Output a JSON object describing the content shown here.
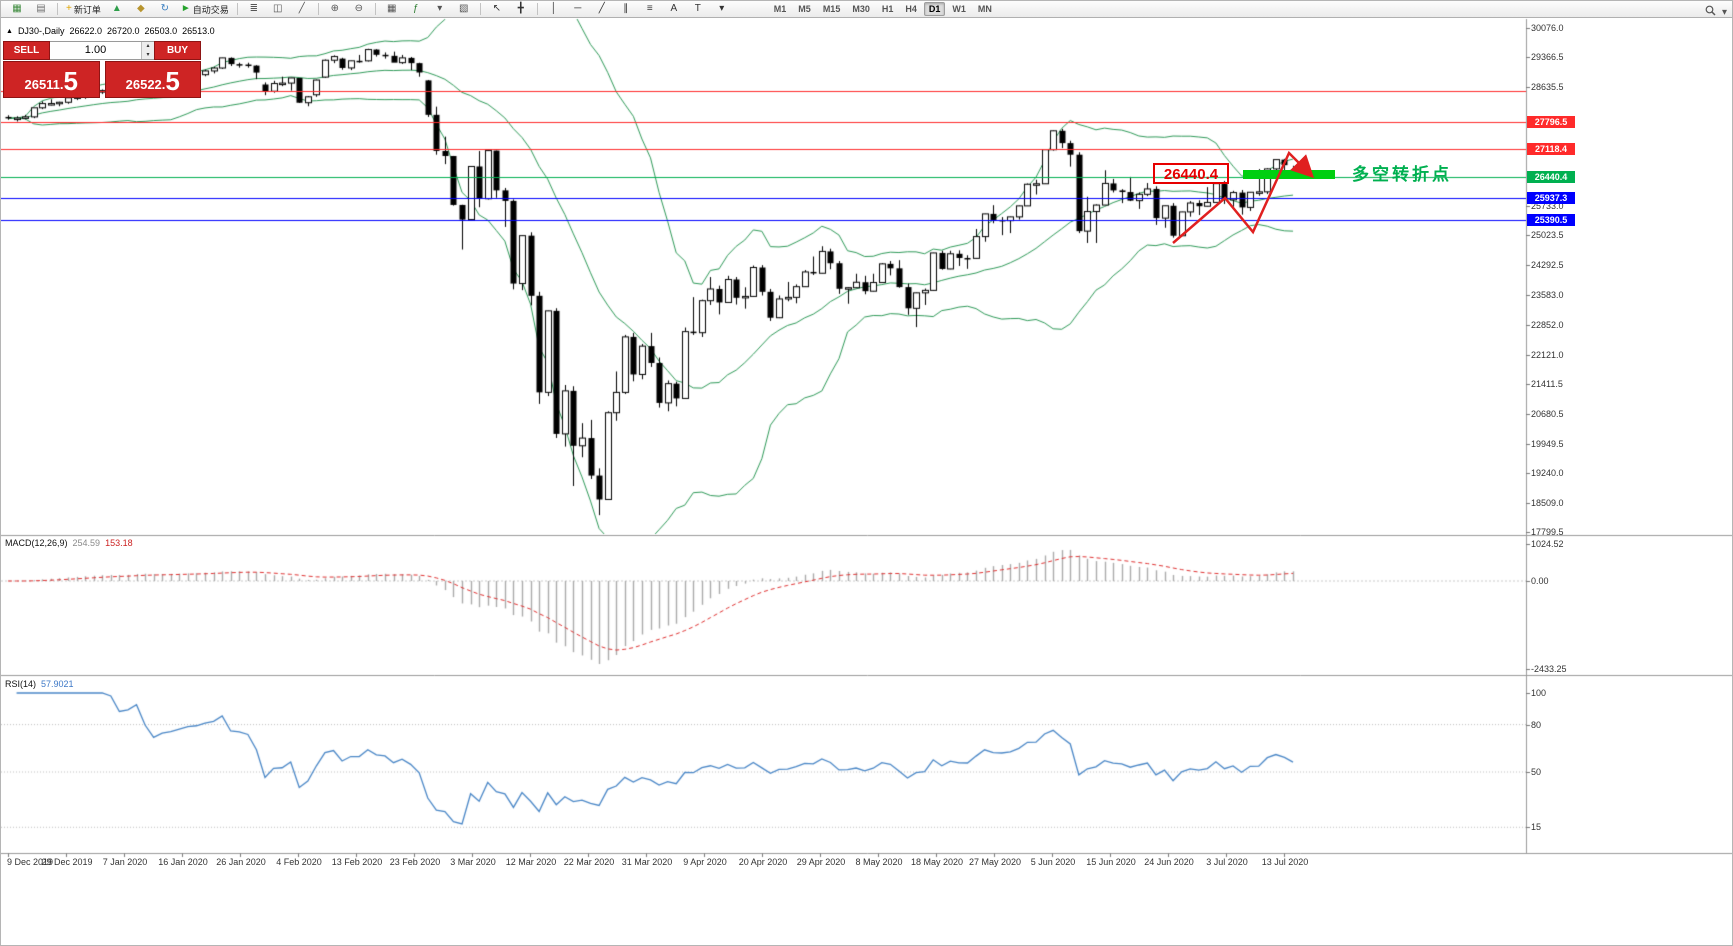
{
  "toolbar": {
    "groups": [
      {
        "items": [
          {
            "name": "new-chart-button",
            "glyph": "▦",
            "color": "#3c8a3c"
          },
          {
            "name": "chart-profiles-button",
            "glyph": "▤",
            "color": "#707070"
          }
        ]
      },
      {
        "items": [
          {
            "name": "new-order-button",
            "glyph": "+",
            "color": "#e0a500",
            "label": "新订单"
          },
          {
            "name": "chart-up-icon",
            "glyph": "▲",
            "color": "#2e9e4a"
          },
          {
            "name": "chart-shift-icon",
            "glyph": "◆",
            "color": "#b8952f"
          },
          {
            "name": "refresh-icon",
            "glyph": "↻",
            "color": "#3a7fc1"
          },
          {
            "name": "auto-trading-button",
            "glyph": "►",
            "color": "#27a32d",
            "label": "自动交易"
          }
        ]
      },
      {
        "items": [
          {
            "name": "bar-chart-type-button",
            "glyph": "≣",
            "color": "#555555"
          },
          {
            "name": "candlestick-chart-type-button",
            "glyph": "◫",
            "color": "#555555"
          },
          {
            "name": "line-chart-type-button",
            "glyph": "╱",
            "color": "#555555"
          }
        ]
      },
      {
        "items": [
          {
            "name": "zoom-in-button",
            "glyph": "⊕",
            "color": "#555555"
          },
          {
            "name": "zoom-out-button",
            "glyph": "⊖",
            "color": "#555555"
          }
        ]
      },
      {
        "items": [
          {
            "name": "tile-windows-button",
            "glyph": "▦",
            "color": "#555555"
          },
          {
            "name": "indicators-button",
            "glyph": "ƒ",
            "color": "#2e7d32"
          },
          {
            "name": "periods-dropdown",
            "glyph": "▾",
            "color": "#555555"
          },
          {
            "name": "templates-button",
            "glyph": "▧",
            "color": "#555555"
          }
        ]
      },
      {
        "items": [
          {
            "name": "cursor-button",
            "glyph": "↖",
            "color": "#333333"
          },
          {
            "name": "crosshair-button",
            "glyph": "╋",
            "color": "#333333"
          }
        ]
      },
      {
        "items": [
          {
            "name": "vertical-line-button",
            "glyph": "│",
            "color": "#333333"
          },
          {
            "name": "horizontal-line-button",
            "glyph": "─",
            "color": "#333333"
          },
          {
            "name": "trendline-button",
            "glyph": "╱",
            "color": "#333333"
          },
          {
            "name": "channel-button",
            "glyph": "∥",
            "color": "#333333"
          },
          {
            "name": "fibonacci-button",
            "glyph": "≡",
            "color": "#333333"
          },
          {
            "name": "text-button",
            "glyph": "A",
            "color": "#333333"
          },
          {
            "name": "text-label-button",
            "glyph": "T",
            "color": "#333333"
          },
          {
            "name": "arrows-dropdown",
            "glyph": "▾",
            "color": "#333333"
          }
        ]
      }
    ],
    "timeframes": [
      "M1",
      "M5",
      "M15",
      "M30",
      "H1",
      "H4",
      "D1",
      "W1",
      "MN"
    ],
    "active_timeframe": "D1"
  },
  "chart_header": {
    "symbol": "DJ30-,Daily",
    "open": "26622.0",
    "high": "26720.0",
    "low": "26503.0",
    "close": "26513.0"
  },
  "trade_panel": {
    "sell_label": "SELL",
    "buy_label": "BUY",
    "volume": "1.00",
    "sell_price_main": "26511.",
    "sell_price_pip": "5",
    "buy_price_main": "26522.",
    "buy_price_pip": "5"
  },
  "indicators": {
    "macd": {
      "name": "MACD(12,26,9)",
      "value_main": "254.59",
      "value_signal": "153.18"
    },
    "rsi": {
      "name": "RSI(14)",
      "value": "57.9021"
    }
  },
  "annotations": {
    "price_label": "26440.4",
    "turning_point_label": "多空转折点"
  },
  "chart_data": {
    "type": "candlestick",
    "symbol": "DJ30-",
    "period": "Daily",
    "ylim": [
      17799.5,
      30076.0
    ],
    "y_ticks": [
      30076.0,
      29366.5,
      28635.5,
      25733.0,
      25023.5,
      24292.5,
      23583.0,
      22852.0,
      22121.0,
      21411.5,
      20680.5,
      19949.5,
      19240.0,
      18509.0,
      17799.5
    ],
    "x_labels": [
      "9 Dec 2019",
      "29 Dec 2019",
      "7 Jan 2020",
      "16 Jan 2020",
      "26 Jan 2020",
      "4 Feb 2020",
      "13 Feb 2020",
      "23 Feb 2020",
      "3 Mar 2020",
      "12 Mar 2020",
      "22 Mar 2020",
      "31 Mar 2020",
      "9 Apr 2020",
      "20 Apr 2020",
      "29 Apr 2020",
      "8 May 2020",
      "18 May 2020",
      "27 May 2020",
      "5 Jun 2020",
      "15 Jun 2020",
      "24 Jun 2020",
      "3 Jul 2020",
      "13 Jul 2020"
    ],
    "horizontal_lines": [
      {
        "price": 28540.0,
        "color": "#ff2a2a"
      },
      {
        "price": 27796.5,
        "color": "#ff2a2a",
        "label": "27796.5"
      },
      {
        "price": 27118.4,
        "color": "#ff2a2a",
        "label": "27118.4"
      },
      {
        "price": 26440.4,
        "color": "#00b050",
        "label": "26440.4"
      },
      {
        "price": 25937.3,
        "color": "#0000ff",
        "label": "25937.3"
      },
      {
        "price": 25390.5,
        "color": "#0000ff",
        "label": "25390.5"
      }
    ],
    "bollinger": {
      "period": 20,
      "deviation": 2
    },
    "macd": {
      "fast": 12,
      "slow": 26,
      "signal": 9,
      "y_ticks": [
        1024.52,
        0,
        -2433.25
      ]
    },
    "rsi": {
      "period": 14,
      "levels": [
        80,
        50,
        15
      ],
      "y_ticks": [
        100,
        80,
        50,
        15
      ]
    },
    "ohlc": [
      [
        27910,
        27950,
        27840,
        27880
      ],
      [
        27880,
        27925,
        27800,
        27882
      ],
      [
        27882,
        27960,
        27850,
        27911
      ],
      [
        27911,
        28110,
        27880,
        28132
      ],
      [
        28132,
        28290,
        28100,
        28235
      ],
      [
        28235,
        28340,
        28190,
        28236
      ],
      [
        28236,
        28280,
        28170,
        28267
      ],
      [
        28267,
        28381,
        28230,
        28377
      ],
      [
        28377,
        28420,
        28320,
        28397
      ],
      [
        28397,
        28480,
        28350,
        28455
      ],
      [
        28455,
        28520,
        28420,
        28515
      ],
      [
        28515,
        28580,
        28470,
        28551
      ],
      [
        28551,
        28600,
        28500,
        28538
      ],
      [
        28538,
        28570,
        28420,
        28462
      ],
      [
        28462,
        28550,
        28400,
        28538
      ],
      [
        28538,
        28890,
        28530,
        28868
      ],
      [
        28868,
        28870,
        28620,
        28703
      ],
      [
        28703,
        28780,
        28560,
        28583
      ],
      [
        28583,
        28720,
        28565,
        28703
      ],
      [
        28703,
        28870,
        28680,
        28745
      ],
      [
        28745,
        28890,
        28710,
        28823
      ],
      [
        28823,
        28920,
        28760,
        28907
      ],
      [
        28907,
        29000,
        28850,
        28939
      ],
      [
        28939,
        29060,
        28900,
        29030
      ],
      [
        29030,
        29130,
        28970,
        29101
      ],
      [
        29101,
        29350,
        29080,
        29348
      ],
      [
        29348,
        29360,
        29150,
        29196
      ],
      [
        29196,
        29230,
        29110,
        29186
      ],
      [
        29186,
        29230,
        29110,
        29160
      ],
      [
        29160,
        29170,
        28830,
        28990
      ],
      [
        28700,
        28750,
        28440,
        28536
      ],
      [
        28536,
        28790,
        28500,
        28723
      ],
      [
        28723,
        28890,
        28660,
        28734
      ],
      [
        28734,
        28860,
        28550,
        28859
      ],
      [
        28859,
        28860,
        28250,
        28256
      ],
      [
        28256,
        28420,
        28170,
        28400
      ],
      [
        28450,
        28820,
        28400,
        28808
      ],
      [
        28880,
        29310,
        28860,
        29291
      ],
      [
        29291,
        29410,
        29220,
        29380
      ],
      [
        29330,
        29350,
        29060,
        29103
      ],
      [
        29103,
        29280,
        29050,
        29277
      ],
      [
        29277,
        29420,
        29230,
        29276
      ],
      [
        29276,
        29570,
        29260,
        29551
      ],
      [
        29551,
        29560,
        29380,
        29423
      ],
      [
        29423,
        29480,
        29330,
        29398
      ],
      [
        29398,
        29500,
        29300,
        29232
      ],
      [
        29232,
        29420,
        29200,
        29348
      ],
      [
        29348,
        29370,
        29050,
        29220
      ],
      [
        29220,
        29230,
        28890,
        28992
      ],
      [
        28800,
        28810,
        27910,
        27961
      ],
      [
        27961,
        28160,
        26990,
        27081
      ],
      [
        27081,
        27430,
        26760,
        26958
      ],
      [
        26958,
        26960,
        25750,
        25766
      ],
      [
        25766,
        25770,
        24680,
        25409
      ],
      [
        25409,
        26710,
        25390,
        26703
      ],
      [
        26703,
        27080,
        25710,
        25917
      ],
      [
        25917,
        27100,
        25900,
        27090
      ],
      [
        27090,
        27090,
        25940,
        26121
      ],
      [
        26121,
        26180,
        25230,
        25865
      ],
      [
        25865,
        25900,
        23710,
        23851
      ],
      [
        23851,
        25020,
        23690,
        25018
      ],
      [
        25018,
        25100,
        23320,
        23553
      ],
      [
        23553,
        23650,
        20920,
        21201
      ],
      [
        21201,
        23190,
        21110,
        23186
      ],
      [
        23186,
        23250,
        20090,
        20189
      ],
      [
        20189,
        21380,
        19880,
        21237
      ],
      [
        21237,
        21350,
        18920,
        19899
      ],
      [
        19899,
        20450,
        19620,
        20087
      ],
      [
        20087,
        20530,
        19090,
        19174
      ],
      [
        19174,
        19350,
        18210,
        18592
      ],
      [
        18592,
        20740,
        18590,
        20705
      ],
      [
        20705,
        21710,
        20510,
        21200
      ],
      [
        21200,
        22600,
        21160,
        22552
      ],
      [
        22552,
        22650,
        21470,
        21637
      ],
      [
        21637,
        22380,
        21520,
        22327
      ],
      [
        22327,
        22650,
        21820,
        21917
      ],
      [
        21917,
        22050,
        20830,
        20944
      ],
      [
        20944,
        21490,
        20740,
        21413
      ],
      [
        21413,
        21460,
        20860,
        21053
      ],
      [
        21053,
        22780,
        21050,
        22680
      ],
      [
        22680,
        23520,
        22600,
        22654
      ],
      [
        22654,
        23460,
        22550,
        23434
      ],
      [
        23434,
        24010,
        23330,
        23719
      ],
      [
        23719,
        23800,
        23100,
        23391
      ],
      [
        23391,
        24040,
        23390,
        23950
      ],
      [
        23950,
        24010,
        23340,
        23504
      ],
      [
        23504,
        23760,
        23240,
        23538
      ],
      [
        23538,
        24290,
        23530,
        24242
      ],
      [
        24242,
        24300,
        23560,
        23650
      ],
      [
        23650,
        23720,
        22940,
        23019
      ],
      [
        23019,
        23560,
        23010,
        23476
      ],
      [
        23476,
        23890,
        23420,
        23515
      ],
      [
        23515,
        23830,
        23370,
        23775
      ],
      [
        23775,
        24180,
        23770,
        24134
      ],
      [
        24134,
        24510,
        24060,
        24102
      ],
      [
        24102,
        24760,
        24100,
        24634
      ],
      [
        24634,
        24700,
        24200,
        24346
      ],
      [
        24346,
        24400,
        23600,
        23724
      ],
      [
        23724,
        23760,
        23360,
        23750
      ],
      [
        23750,
        24090,
        23740,
        23883
      ],
      [
        23883,
        24040,
        23590,
        23665
      ],
      [
        23665,
        24090,
        23660,
        23876
      ],
      [
        23876,
        24350,
        23870,
        24331
      ],
      [
        24331,
        24400,
        24050,
        24222
      ],
      [
        24222,
        24420,
        23750,
        23765
      ],
      [
        23765,
        23850,
        23090,
        23248
      ],
      [
        23248,
        23630,
        22790,
        23625
      ],
      [
        23625,
        23730,
        23330,
        23685
      ],
      [
        23685,
        24600,
        23680,
        24597
      ],
      [
        24597,
        24650,
        24190,
        24207
      ],
      [
        24207,
        24650,
        24200,
        24576
      ],
      [
        24576,
        24660,
        24280,
        24474
      ],
      [
        24474,
        24540,
        24210,
        24465
      ],
      [
        24465,
        25180,
        24460,
        24995
      ],
      [
        24995,
        25550,
        24870,
        25548
      ],
      [
        25548,
        25760,
        25320,
        25401
      ],
      [
        25401,
        25470,
        25030,
        25383
      ],
      [
        25383,
        25480,
        25080,
        25475
      ],
      [
        25475,
        25750,
        25410,
        25743
      ],
      [
        25743,
        26290,
        25740,
        26270
      ],
      [
        26270,
        26380,
        26020,
        26282
      ],
      [
        26282,
        27120,
        26280,
        27111
      ],
      [
        27111,
        27580,
        27090,
        27572
      ],
      [
        27572,
        27620,
        27150,
        27272
      ],
      [
        27272,
        27330,
        26700,
        26990
      ],
      [
        26990,
        27050,
        25080,
        25128
      ],
      [
        25128,
        25965,
        24840,
        25605
      ],
      [
        25605,
        25780,
        24840,
        25763
      ],
      [
        25763,
        26610,
        25760,
        26290
      ],
      [
        26290,
        26400,
        26070,
        26120
      ],
      [
        26120,
        26150,
        25810,
        26080
      ],
      [
        26080,
        26450,
        25860,
        25871
      ],
      [
        25871,
        26070,
        25670,
        26025
      ],
      [
        26025,
        26300,
        25980,
        26156
      ],
      [
        26156,
        26220,
        25280,
        25445
      ],
      [
        25445,
        25750,
        25210,
        25746
      ],
      [
        25746,
        25810,
        24970,
        25016
      ],
      [
        25016,
        25600,
        25010,
        25596
      ],
      [
        25596,
        25860,
        25480,
        25813
      ],
      [
        25813,
        25880,
        25520,
        25735
      ],
      [
        25735,
        26200,
        25730,
        25827
      ],
      [
        25827,
        26300,
        25820,
        26287
      ],
      [
        26287,
        26350,
        25790,
        25890
      ],
      [
        25890,
        26110,
        25720,
        26067
      ],
      [
        26067,
        26130,
        25530,
        25706
      ],
      [
        25706,
        26080,
        25620,
        26075
      ],
      [
        26075,
        26640,
        25990,
        26085
      ],
      [
        26085,
        26660,
        26030,
        26643
      ],
      [
        26643,
        26870,
        26470,
        26870
      ],
      [
        26870,
        26890,
        26590,
        26735
      ],
      [
        26622,
        26720,
        26503,
        26513
      ]
    ]
  }
}
